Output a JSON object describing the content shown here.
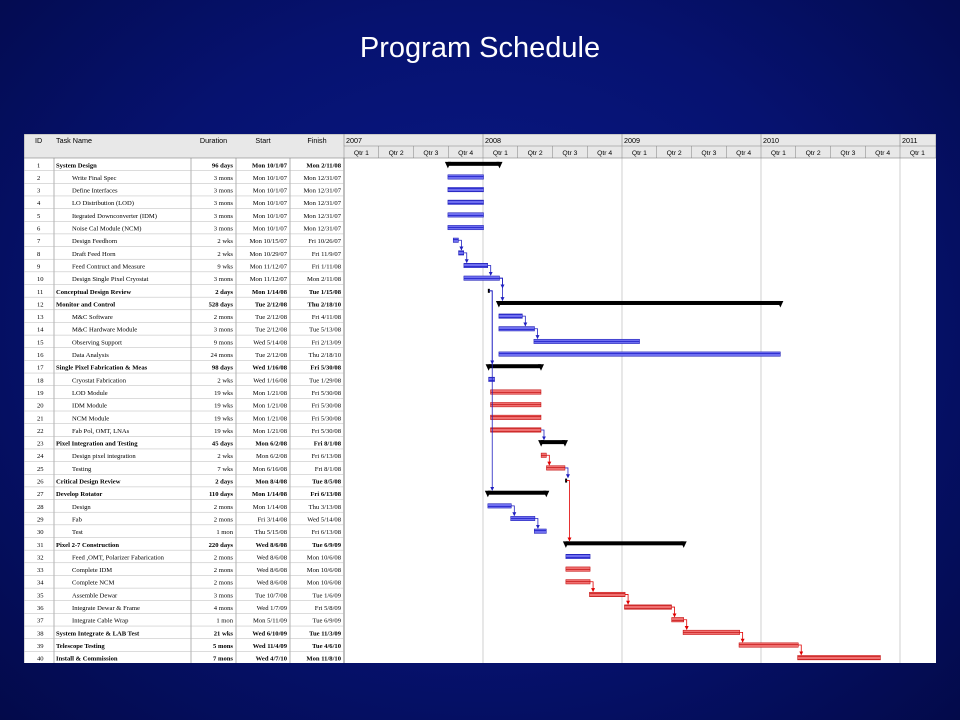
{
  "slide": {
    "title": "Program Schedule"
  },
  "colors": {
    "summary": "#000000",
    "normal": "#4040e0",
    "critical": "#e04040",
    "background": "#0a1a7a"
  },
  "chart_data": {
    "type": "gantt",
    "columns": {
      "id": "ID",
      "name": "Task Name",
      "duration": "Duration",
      "start": "Start",
      "finish": "Finish"
    },
    "time_range": [
      "2007-01-01",
      "2011-01-01"
    ],
    "years": [
      "2007",
      "2008",
      "2009",
      "2010",
      "2011"
    ],
    "quarters": [
      "Qtr 1",
      "Qtr 2",
      "Qtr 3",
      "Qtr 4",
      "Qtr 1",
      "Qtr 2",
      "Qtr 3",
      "Qtr 4",
      "Qtr 1",
      "Qtr 2",
      "Qtr 3",
      "Qtr 4",
      "Qtr 1",
      "Qtr 2",
      "Qtr 3",
      "Qtr 4",
      "Qtr 1"
    ],
    "tasks": [
      {
        "id": "1",
        "name": "System Design",
        "duration": "96 days",
        "start": "Mon 10/1/07",
        "finish": "Mon 2/11/08",
        "s": "2007-10-01",
        "f": "2008-02-11",
        "kind": "summary",
        "indent": 0
      },
      {
        "id": "2",
        "name": "Write Final Spec",
        "duration": "3 mons",
        "start": "Mon 10/1/07",
        "finish": "Mon 12/31/07",
        "s": "2007-10-01",
        "f": "2007-12-31",
        "kind": "normal",
        "indent": 1
      },
      {
        "id": "3",
        "name": "Define Interfaces",
        "duration": "3 mons",
        "start": "Mon 10/1/07",
        "finish": "Mon 12/31/07",
        "s": "2007-10-01",
        "f": "2007-12-31",
        "kind": "normal",
        "indent": 1
      },
      {
        "id": "4",
        "name": "LO Distribution (LOD)",
        "duration": "3 mons",
        "start": "Mon 10/1/07",
        "finish": "Mon 12/31/07",
        "s": "2007-10-01",
        "f": "2007-12-31",
        "kind": "normal",
        "indent": 1
      },
      {
        "id": "5",
        "name": "Itegrated Downconverter (IDM)",
        "duration": "3 mons",
        "start": "Mon 10/1/07",
        "finish": "Mon 12/31/07",
        "s": "2007-10-01",
        "f": "2007-12-31",
        "kind": "normal",
        "indent": 1
      },
      {
        "id": "6",
        "name": " Noise Cal Module (NCM)",
        "duration": "3 mons",
        "start": "Mon 10/1/07",
        "finish": "Mon 12/31/07",
        "s": "2007-10-01",
        "f": "2007-12-31",
        "kind": "normal",
        "indent": 1
      },
      {
        "id": "7",
        "name": "Design Feedhorn",
        "duration": "2 wks",
        "start": "Mon 10/15/07",
        "finish": "Fri 10/26/07",
        "s": "2007-10-15",
        "f": "2007-10-26",
        "kind": "normal",
        "indent": 1
      },
      {
        "id": "8",
        "name": "Draft Feed Horn",
        "duration": "2 wks",
        "start": "Mon 10/29/07",
        "finish": "Fri 11/9/07",
        "s": "2007-10-29",
        "f": "2007-11-09",
        "kind": "normal",
        "indent": 1
      },
      {
        "id": "9",
        "name": "Feed Contruct and Measure",
        "duration": "9 wks",
        "start": "Mon 11/12/07",
        "finish": "Fri 1/11/08",
        "s": "2007-11-12",
        "f": "2008-01-11",
        "kind": "normal",
        "indent": 1
      },
      {
        "id": "10",
        "name": "Design Single Pixel Cryostat",
        "duration": "3 mons",
        "start": "Mon 11/12/07",
        "finish": "Mon 2/11/08",
        "s": "2007-11-12",
        "f": "2008-02-11",
        "kind": "normal",
        "indent": 1
      },
      {
        "id": "11",
        "name": "Conceptual Design Review",
        "duration": "2 days",
        "start": "Mon 1/14/08",
        "finish": "Tue 1/15/08",
        "s": "2008-01-14",
        "f": "2008-01-15",
        "kind": "milestone",
        "indent": 0
      },
      {
        "id": "12",
        "name": "Monitor and Control",
        "duration": "528 days",
        "start": "Tue 2/12/08",
        "finish": "Thu 2/18/10",
        "s": "2008-02-12",
        "f": "2010-02-18",
        "kind": "summary",
        "indent": 0
      },
      {
        "id": "13",
        "name": "M&C Software",
        "duration": "2 mons",
        "start": "Tue 2/12/08",
        "finish": "Fri 4/11/08",
        "s": "2008-02-12",
        "f": "2008-04-11",
        "kind": "normal",
        "indent": 1
      },
      {
        "id": "14",
        "name": "M&C Hardware Module",
        "duration": "3 mons",
        "start": "Tue 2/12/08",
        "finish": "Tue 5/13/08",
        "s": "2008-02-12",
        "f": "2008-05-13",
        "kind": "normal",
        "indent": 1
      },
      {
        "id": "15",
        "name": "Observing Support",
        "duration": "9 mons",
        "start": "Wed 5/14/08",
        "finish": "Fri 2/13/09",
        "s": "2008-05-14",
        "f": "2009-02-13",
        "kind": "normal",
        "indent": 1
      },
      {
        "id": "16",
        "name": "Data Analysis",
        "duration": "24 mons",
        "start": "Tue 2/12/08",
        "finish": "Thu 2/18/10",
        "s": "2008-02-12",
        "f": "2010-02-18",
        "kind": "normal",
        "indent": 1
      },
      {
        "id": "17",
        "name": "Single Pixel Fabrication & Meas",
        "duration": "98 days",
        "start": "Wed 1/16/08",
        "finish": "Fri 5/30/08",
        "s": "2008-01-16",
        "f": "2008-05-30",
        "kind": "summary",
        "indent": 0
      },
      {
        "id": "18",
        "name": "Cryostat Fabrication",
        "duration": "2 wks",
        "start": "Wed 1/16/08",
        "finish": "Tue 1/29/08",
        "s": "2008-01-16",
        "f": "2008-01-29",
        "kind": "normal",
        "indent": 1
      },
      {
        "id": "19",
        "name": "LOD  Module",
        "duration": "19 wks",
        "start": "Mon 1/21/08",
        "finish": "Fri 5/30/08",
        "s": "2008-01-21",
        "f": "2008-05-30",
        "kind": "critical",
        "indent": 1
      },
      {
        "id": "20",
        "name": "IDM Module",
        "duration": "19 wks",
        "start": "Mon 1/21/08",
        "finish": "Fri 5/30/08",
        "s": "2008-01-21",
        "f": "2008-05-30",
        "kind": "critical",
        "indent": 1
      },
      {
        "id": "21",
        "name": "NCM Module",
        "duration": "19 wks",
        "start": "Mon 1/21/08",
        "finish": "Fri 5/30/08",
        "s": "2008-01-21",
        "f": "2008-05-30",
        "kind": "critical",
        "indent": 1
      },
      {
        "id": "22",
        "name": " Fab Pol, OMT, LNAs",
        "duration": "19 wks",
        "start": "Mon 1/21/08",
        "finish": "Fri 5/30/08",
        "s": "2008-01-21",
        "f": "2008-05-30",
        "kind": "critical",
        "indent": 1
      },
      {
        "id": "23",
        "name": "Pixel Integration and  Testing",
        "duration": "45 days",
        "start": "Mon 6/2/08",
        "finish": "Fri 8/1/08",
        "s": "2008-06-02",
        "f": "2008-08-01",
        "kind": "summary",
        "indent": 0
      },
      {
        "id": "24",
        "name": "Design pixel integration",
        "duration": "2 wks",
        "start": "Mon 6/2/08",
        "finish": "Fri 6/13/08",
        "s": "2008-06-02",
        "f": "2008-06-13",
        "kind": "critical",
        "indent": 1
      },
      {
        "id": "25",
        "name": "Testing",
        "duration": "7 wks",
        "start": "Mon 6/16/08",
        "finish": "Fri 8/1/08",
        "s": "2008-06-16",
        "f": "2008-08-01",
        "kind": "critical",
        "indent": 1
      },
      {
        "id": "26",
        "name": "Critical Design Review",
        "duration": "2 days",
        "start": "Mon 8/4/08",
        "finish": "Tue 8/5/08",
        "s": "2008-08-04",
        "f": "2008-08-05",
        "kind": "milestone",
        "indent": 0
      },
      {
        "id": "27",
        "name": "Develop Rotator",
        "duration": "110 days",
        "start": "Mon 1/14/08",
        "finish": "Fri 6/13/08",
        "s": "2008-01-14",
        "f": "2008-06-13",
        "kind": "summary",
        "indent": 0
      },
      {
        "id": "28",
        "name": "Design",
        "duration": "2 mons",
        "start": "Mon 1/14/08",
        "finish": "Thu 3/13/08",
        "s": "2008-01-14",
        "f": "2008-03-13",
        "kind": "normal",
        "indent": 1
      },
      {
        "id": "29",
        "name": "Fab",
        "duration": "2 mons",
        "start": "Fri 3/14/08",
        "finish": "Wed 5/14/08",
        "s": "2008-03-14",
        "f": "2008-05-14",
        "kind": "normal",
        "indent": 1
      },
      {
        "id": "30",
        "name": "Test",
        "duration": "1 mon",
        "start": "Thu 5/15/08",
        "finish": "Fri 6/13/08",
        "s": "2008-05-15",
        "f": "2008-06-13",
        "kind": "normal",
        "indent": 1
      },
      {
        "id": "31",
        "name": "Pixel 2-7 Construction",
        "duration": "220 days",
        "start": "Wed 8/6/08",
        "finish": "Tue 6/9/09",
        "s": "2008-08-06",
        "f": "2009-06-09",
        "kind": "summary",
        "indent": 0
      },
      {
        "id": "32",
        "name": "Feed ,OMT, Polarizer Fabarication",
        "duration": "2 mons",
        "start": "Wed 8/6/08",
        "finish": "Mon 10/6/08",
        "s": "2008-08-06",
        "f": "2008-10-06",
        "kind": "normal",
        "indent": 1
      },
      {
        "id": "33",
        "name": "Complete IDM",
        "duration": "2 mons",
        "start": "Wed 8/6/08",
        "finish": "Mon 10/6/08",
        "s": "2008-08-06",
        "f": "2008-10-06",
        "kind": "critical",
        "indent": 1
      },
      {
        "id": "34",
        "name": "Complete NCM",
        "duration": "2 mons",
        "start": "Wed 8/6/08",
        "finish": "Mon 10/6/08",
        "s": "2008-08-06",
        "f": "2008-10-06",
        "kind": "critical",
        "indent": 1
      },
      {
        "id": "35",
        "name": "Assemble Dewar",
        "duration": "3 mons",
        "start": "Tue 10/7/08",
        "finish": "Tue 1/6/09",
        "s": "2008-10-07",
        "f": "2009-01-06",
        "kind": "critical",
        "indent": 1
      },
      {
        "id": "36",
        "name": "Integrate Dewar & Frame",
        "duration": "4 mons",
        "start": "Wed 1/7/09",
        "finish": "Fri 5/8/09",
        "s": "2009-01-07",
        "f": "2009-05-08",
        "kind": "critical",
        "indent": 1
      },
      {
        "id": "37",
        "name": "Integrate Cable Wrap",
        "duration": "1 mon",
        "start": "Mon 5/11/09",
        "finish": "Tue 6/9/09",
        "s": "2009-05-11",
        "f": "2009-06-09",
        "kind": "critical",
        "indent": 1
      },
      {
        "id": "38",
        "name": "System Integrate & LAB Test",
        "duration": "21 wks",
        "start": "Wed 6/10/09",
        "finish": "Tue 11/3/09",
        "s": "2009-06-10",
        "f": "2009-11-03",
        "kind": "critical",
        "indent": 0
      },
      {
        "id": "39",
        "name": "Telescope Testing",
        "duration": "5 mons",
        "start": "Wed 11/4/09",
        "finish": "Tue 4/6/10",
        "s": "2009-11-04",
        "f": "2010-04-06",
        "kind": "critical",
        "indent": 0
      },
      {
        "id": "40",
        "name": "Install & Commission",
        "duration": "7 mons",
        "start": "Wed 4/7/10",
        "finish": "Mon 11/8/10",
        "s": "2010-04-07",
        "f": "2010-11-08",
        "kind": "critical",
        "indent": 0
      }
    ]
  }
}
